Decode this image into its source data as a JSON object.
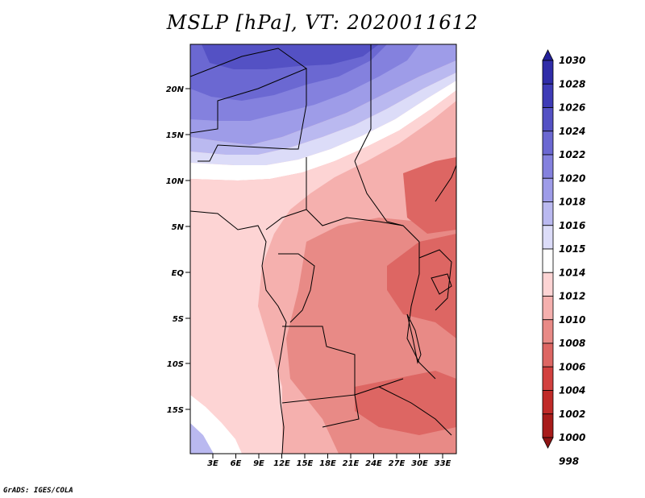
{
  "title": "MSLP [hPa], VT: 2020011612",
  "footer": "GrADS: IGES/COLA",
  "lat_labels": [
    "20N",
    "15N",
    "10N",
    "5N",
    "EQ",
    "5S",
    "10S",
    "15S"
  ],
  "lon_labels": [
    "3E",
    "6E",
    "9E",
    "12E",
    "15E",
    "18E",
    "21E",
    "24E",
    "27E",
    "30E",
    "33E"
  ],
  "colorbar": {
    "labels": [
      "1030",
      "1028",
      "1026",
      "1024",
      "1022",
      "1020",
      "1018",
      "1016",
      "1015",
      "1014",
      "1012",
      "1010",
      "1008",
      "1006",
      "1004",
      "1002",
      "1000",
      "998"
    ],
    "colors": [
      "#23209a",
      "#2f2ca8",
      "#3e3bb6",
      "#5451c4",
      "#6b68d2",
      "#8481de",
      "#9e9ce8",
      "#bab9f0",
      "#dcdcf8",
      "#ffffff",
      "#fdd4d4",
      "#f5b0ae",
      "#e88a86",
      "#dd6663",
      "#d2413f",
      "#c02a28",
      "#a81b1a",
      "#8e1414"
    ]
  },
  "chart_data": {
    "type": "heatmap",
    "title": "MSLP [hPa], VT: 2020011612",
    "units": "hPa",
    "lon_range": [
      "0E",
      "35E"
    ],
    "lat_range": [
      "20S",
      "24N"
    ],
    "levels": [
      998,
      1000,
      1002,
      1004,
      1006,
      1008,
      1010,
      1012,
      1014,
      1015,
      1016,
      1018,
      1020,
      1022,
      1024,
      1026,
      1028,
      1030
    ],
    "x_ticks": [
      "3E",
      "6E",
      "9E",
      "12E",
      "15E",
      "18E",
      "21E",
      "24E",
      "27E",
      "30E",
      "33E"
    ],
    "y_ticks": [
      "20N",
      "15N",
      "10N",
      "5N",
      "EQ",
      "5S",
      "10S",
      "15S"
    ]
  }
}
